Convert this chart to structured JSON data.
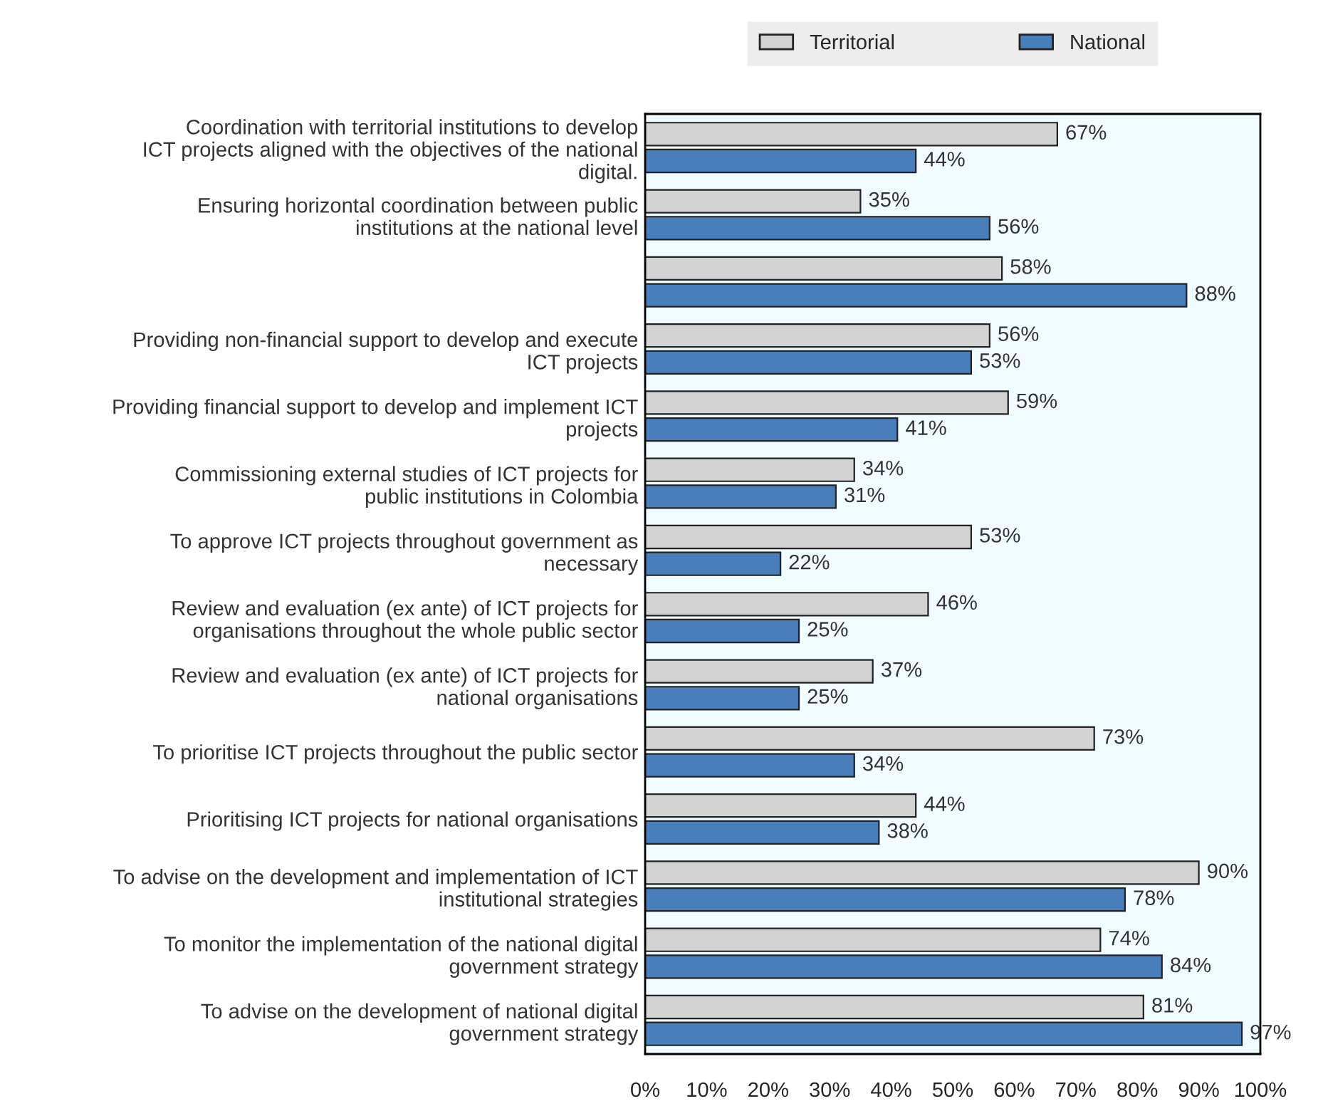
{
  "chart_data": {
    "type": "bar",
    "orientation": "horizontal",
    "categories": [
      "Coordination with territorial institutions to develop ICT projects aligned with the objectives of the national digital.",
      "Ensuring horizontal coordination between public institutions at the national level",
      null,
      "Providing non-financial support to develop and execute ICT projects",
      "Providing financial support to develop and implement ICT projects",
      "Commissioning external studies of ICT projects for public institutions in Colombia",
      "To approve ICT projects throughout government as necessary",
      "Review and evaluation (ex ante) of ICT projects for organisations throughout the whole public sector",
      "Review and evaluation (ex ante) of ICT projects for national organisations",
      "To prioritise ICT projects throughout the public sector",
      "Prioritising ICT projects for national organisations",
      "To advise on the development and implementation of ICT institutional strategies",
      "To monitor the implementation of the national digital government strategy",
      "To advise on the development of national digital government strategy"
    ],
    "series": [
      {
        "name": "Territorial",
        "color": "#d3d3d3",
        "values": [
          67,
          35,
          58,
          56,
          59,
          34,
          53,
          46,
          37,
          73,
          44,
          90,
          74,
          81
        ],
        "value_labels": [
          "67%",
          "35%",
          "58%",
          "56%",
          "59%",
          "34%",
          "53%",
          "46%",
          "37%",
          "73%",
          "44%",
          "90%",
          "74%",
          "81%"
        ]
      },
      {
        "name": "National",
        "color": "#4a7ebb",
        "values": [
          44,
          56,
          88,
          53,
          41,
          31,
          22,
          25,
          25,
          34,
          38,
          78,
          84,
          97
        ],
        "value_labels": [
          "44%",
          "56%",
          "88%",
          "53%",
          "41%",
          "31%",
          "22%",
          "25%",
          "25%",
          "34%",
          "38%",
          "78%",
          "84%",
          "97%"
        ]
      }
    ],
    "xlim": [
      0,
      100
    ],
    "xticks": [
      {
        "value": 0,
        "label": "0%"
      },
      {
        "value": 10,
        "label": "10%"
      },
      {
        "value": 20,
        "label": "20%"
      },
      {
        "value": 30,
        "label": "30%"
      },
      {
        "value": 40,
        "label": "40%"
      },
      {
        "value": 50,
        "label": "50%"
      },
      {
        "value": 60,
        "label": "60%"
      },
      {
        "value": 70,
        "label": "70%"
      },
      {
        "value": 80,
        "label": "80%"
      },
      {
        "value": 90,
        "label": "90%"
      },
      {
        "value": 100,
        "label": "100%"
      }
    ],
    "legend": "top",
    "grid": false
  }
}
